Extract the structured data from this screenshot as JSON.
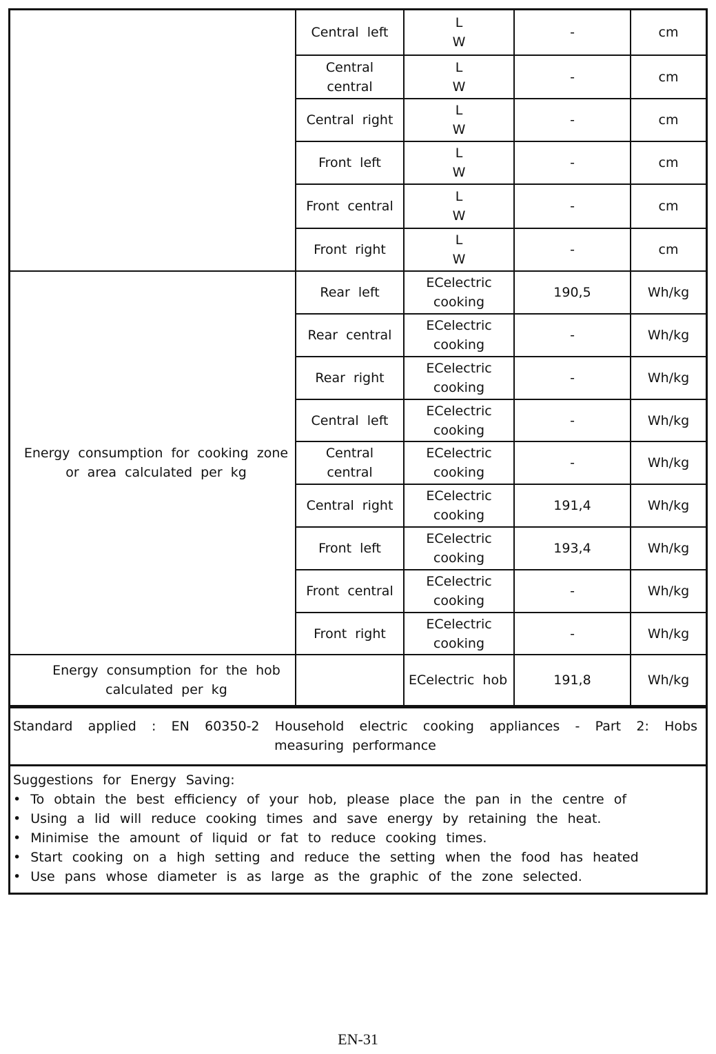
{
  "table": {
    "group1_label_lines": [],
    "group2_label_lines": [
      "Energy consumption for cooking zone",
      "or area calculated per kg"
    ],
    "rows": [
      {
        "zone": [
          "Central left"
        ],
        "param": [
          "L",
          "W"
        ],
        "value": "-",
        "unit": "cm"
      },
      {
        "zone": [
          "Central",
          "central"
        ],
        "param": [
          "L",
          "W"
        ],
        "value": "-",
        "unit": "cm"
      },
      {
        "zone": [
          "Central right"
        ],
        "param": [
          "L",
          "W"
        ],
        "value": "-",
        "unit": "cm"
      },
      {
        "zone": [
          "Front left"
        ],
        "param": [
          "L",
          "W"
        ],
        "value": "-",
        "unit": "cm"
      },
      {
        "zone": [
          "Front central"
        ],
        "param": [
          "L",
          "W"
        ],
        "value": "-",
        "unit": "cm"
      },
      {
        "zone": [
          "Front right"
        ],
        "param": [
          "L",
          "W"
        ],
        "value": "-",
        "unit": "cm"
      },
      {
        "zone": [
          "Rear left"
        ],
        "param": [
          "ECelectric",
          "cooking"
        ],
        "value": "190,5",
        "unit": "Wh/kg"
      },
      {
        "zone": [
          "Rear central"
        ],
        "param": [
          "ECelectric",
          "cooking"
        ],
        "value": "-",
        "unit": "Wh/kg"
      },
      {
        "zone": [
          "Rear right"
        ],
        "param": [
          "ECelectric",
          "cooking"
        ],
        "value": "-",
        "unit": "Wh/kg"
      },
      {
        "zone": [
          "Central left"
        ],
        "param": [
          "ECelectric",
          "cooking"
        ],
        "value": "-",
        "unit": "Wh/kg"
      },
      {
        "zone": [
          "Central",
          "central"
        ],
        "param": [
          "ECelectric",
          "cooking"
        ],
        "value": "-",
        "unit": "Wh/kg"
      },
      {
        "zone": [
          "Central right"
        ],
        "param": [
          "ECelectric",
          "cooking"
        ],
        "value": "191,4",
        "unit": "Wh/kg"
      },
      {
        "zone": [
          "Front left"
        ],
        "param": [
          "ECelectric",
          "cooking"
        ],
        "value": "193,4",
        "unit": "Wh/kg"
      },
      {
        "zone": [
          "Front central"
        ],
        "param": [
          "ECelectric",
          "cooking"
        ],
        "value": "-",
        "unit": "Wh/kg"
      },
      {
        "zone": [
          "Front right"
        ],
        "param": [
          "ECelectric",
          "cooking"
        ],
        "value": "-",
        "unit": "Wh/kg"
      }
    ],
    "hob_row": {
      "label_lines": [
        "Energy consumption for the hob",
        "calculated per kg"
      ],
      "param": "ECelectric hob",
      "value": "191,8",
      "unit": "Wh/kg"
    }
  },
  "standard": {
    "line1": "Standard applied : EN 60350-2 Household electric cooking appliances - Part 2: Hobs",
    "line2": "measuring performance"
  },
  "suggestions": {
    "title": "Suggestions for Energy Saving:",
    "items": [
      "To obtain the best efficiency of your hob, please place the pan in the centre of",
      "Using a lid will reduce cooking times and save energy by retaining the heat.",
      "Minimise the amount of liquid or fat to reduce cooking times.",
      "Start cooking on a high setting and reduce the setting when the food has heated",
      "Use pans whose diameter is as large as the graphic of the zone selected."
    ]
  },
  "footer": {
    "page_number": "EN-31"
  }
}
